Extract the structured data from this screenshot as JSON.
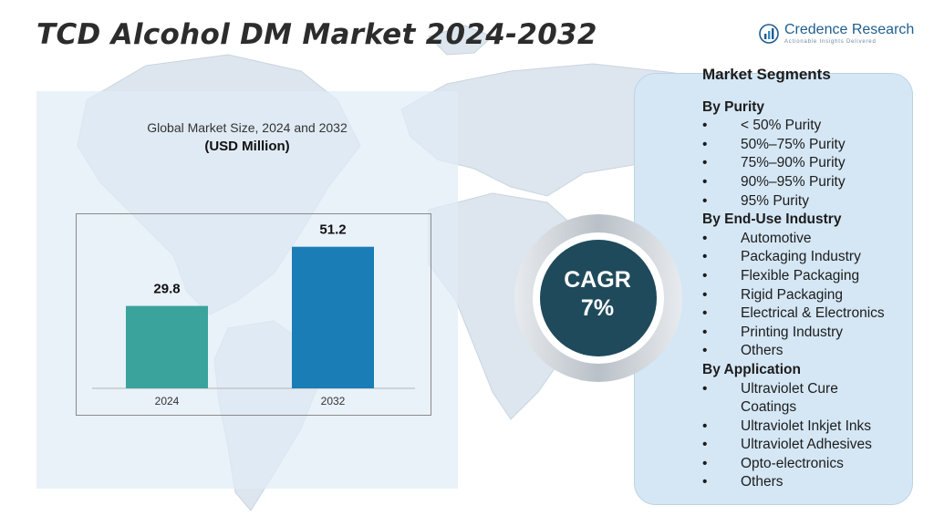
{
  "header": {
    "title": "TCD Alcohol DM Market  2024-2032",
    "logo_name": "Credence Research",
    "logo_tagline": "Actionable Insights Delivered"
  },
  "chart_panel": {
    "subtitle": "Global Market Size, 2024 and 2032",
    "unit": "(USD Million)"
  },
  "chart_data": {
    "type": "bar",
    "categories": [
      "2024",
      "2032"
    ],
    "values": [
      29.8,
      51.2
    ],
    "value_labels": [
      "29.8",
      "51.2"
    ],
    "title": "Global Market Size, 2024 and 2032",
    "ylabel": "(USD Million)",
    "xlabel": "",
    "ylim": [
      0,
      60
    ],
    "grid": false,
    "colors": [
      "#3aa39c",
      "#1a7db5"
    ]
  },
  "cagr": {
    "label": "CAGR",
    "value": "7%",
    "color": "#1f4a5c"
  },
  "segments": {
    "title": "Market Segments",
    "groups": [
      {
        "heading": "By Purity",
        "items": [
          "< 50% Purity",
          "50%–75% Purity",
          "75%–90% Purity",
          "90%–95% Purity",
          "95% Purity"
        ]
      },
      {
        "heading": "By End-Use Industry",
        "items": [
          "Automotive",
          "Packaging Industry",
          "Flexible Packaging",
          "Rigid Packaging",
          "Electrical & Electronics",
          "Printing Industry",
          "Others"
        ]
      },
      {
        "heading": "By Application",
        "items": [
          "Ultraviolet Cure Coatings",
          "Ultraviolet Inkjet Inks",
          "Ultraviolet Adhesives",
          "Opto-electronics",
          "Others"
        ]
      }
    ]
  }
}
